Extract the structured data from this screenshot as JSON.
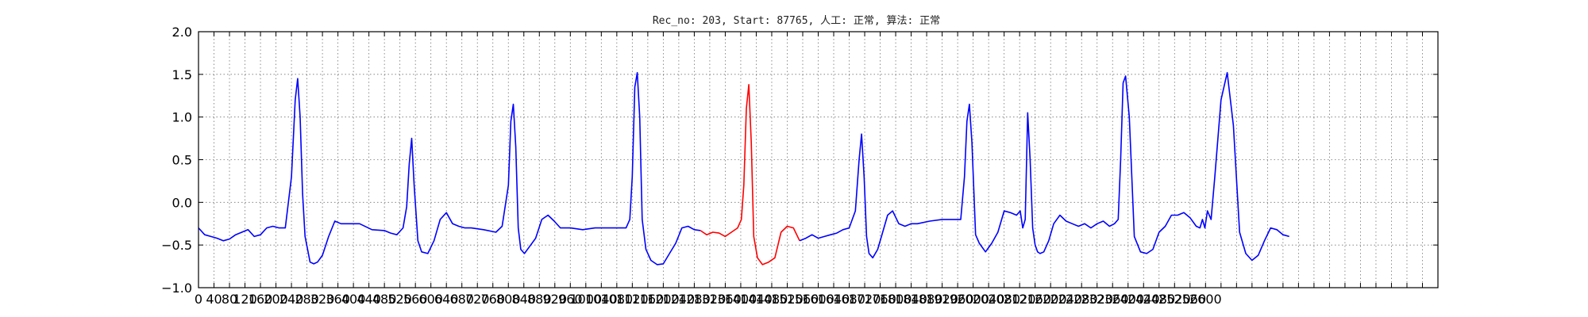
{
  "chart_data": {
    "type": "line",
    "title": "Rec_no: 203, Start: 87765, 人工: 正常, 算法: 正常",
    "xlabel": "",
    "ylabel": "",
    "xlim": [
      0,
      1.0
    ],
    "ylim": [
      -1.0,
      2.0
    ],
    "grid": true,
    "y_ticks": [
      {
        "value": -1.0,
        "label": "−1.0"
      },
      {
        "value": -0.5,
        "label": "−0.5"
      },
      {
        "value": 0.0,
        "label": "0.0"
      },
      {
        "value": 0.5,
        "label": "0.5"
      },
      {
        "value": 1.0,
        "label": "1.0"
      },
      {
        "value": 1.5,
        "label": "1.5"
      },
      {
        "value": 2.0,
        "label": "2.0"
      }
    ],
    "x_ticks": [
      {
        "value": 0.0,
        "label": "0"
      },
      {
        "value": 0.0125,
        "label": "40"
      },
      {
        "value": 0.025,
        "label": "80"
      },
      {
        "value": 0.0375,
        "label": "120"
      },
      {
        "value": 0.05,
        "label": "160"
      },
      {
        "value": 0.0625,
        "label": "200"
      },
      {
        "value": 0.075,
        "label": "240"
      },
      {
        "value": 0.0875,
        "label": "280"
      },
      {
        "value": 0.1,
        "label": "320"
      },
      {
        "value": 0.1125,
        "label": "360"
      },
      {
        "value": 0.125,
        "label": "400"
      },
      {
        "value": 0.1375,
        "label": "440"
      },
      {
        "value": 0.15,
        "label": "480"
      },
      {
        "value": 0.1625,
        "label": "520"
      },
      {
        "value": 0.175,
        "label": "560"
      },
      {
        "value": 0.1875,
        "label": "600"
      },
      {
        "value": 0.2,
        "label": "640"
      },
      {
        "value": 0.2125,
        "label": "680"
      },
      {
        "value": 0.225,
        "label": "720"
      },
      {
        "value": 0.2375,
        "label": "760"
      },
      {
        "value": 0.25,
        "label": "800"
      },
      {
        "value": 0.2625,
        "label": "840"
      },
      {
        "value": 0.275,
        "label": "880"
      },
      {
        "value": 0.2875,
        "label": "920"
      },
      {
        "value": 0.3,
        "label": "960"
      },
      {
        "value": 0.3125,
        "label": "1000"
      },
      {
        "value": 0.325,
        "label": "1040"
      },
      {
        "value": 0.3375,
        "label": "1080"
      },
      {
        "value": 0.35,
        "label": "1120"
      },
      {
        "value": 0.3625,
        "label": "1160"
      },
      {
        "value": 0.375,
        "label": "1200"
      },
      {
        "value": 0.3875,
        "label": "1240"
      },
      {
        "value": 0.4,
        "label": "1280"
      },
      {
        "value": 0.4125,
        "label": "1320"
      },
      {
        "value": 0.425,
        "label": "1360"
      },
      {
        "value": 0.4375,
        "label": "1400"
      },
      {
        "value": 0.45,
        "label": "1440"
      },
      {
        "value": 0.4625,
        "label": "1480"
      },
      {
        "value": 0.475,
        "label": "1520"
      },
      {
        "value": 0.4875,
        "label": "1560"
      },
      {
        "value": 0.5,
        "label": "1600"
      },
      {
        "value": 0.5125,
        "label": "1640"
      },
      {
        "value": 0.525,
        "label": "1680"
      },
      {
        "value": 0.5375,
        "label": "1720"
      },
      {
        "value": 0.55,
        "label": "1760"
      },
      {
        "value": 0.5625,
        "label": "1800"
      },
      {
        "value": 0.575,
        "label": "1840"
      },
      {
        "value": 0.5875,
        "label": "1880"
      },
      {
        "value": 0.6,
        "label": "1920"
      },
      {
        "value": 0.6125,
        "label": "1960"
      },
      {
        "value": 0.625,
        "label": "2000"
      },
      {
        "value": 0.6375,
        "label": "2040"
      },
      {
        "value": 0.65,
        "label": "2080"
      },
      {
        "value": 0.6625,
        "label": "2120"
      },
      {
        "value": 0.675,
        "label": "2160"
      },
      {
        "value": 0.6875,
        "label": "2200"
      },
      {
        "value": 0.7,
        "label": "2240"
      },
      {
        "value": 0.7125,
        "label": "2280"
      },
      {
        "value": 0.725,
        "label": "2320"
      },
      {
        "value": 0.7375,
        "label": "2360"
      },
      {
        "value": 0.75,
        "label": "2400"
      },
      {
        "value": 0.7625,
        "label": "2440"
      },
      {
        "value": 0.775,
        "label": "2480"
      },
      {
        "value": 0.7875,
        "label": "2520"
      },
      {
        "value": 0.8,
        "label": "2560"
      },
      {
        "value": 0.8125,
        "label": "2600"
      },
      {
        "value": 0.825,
        "label": ""
      },
      {
        "value": 0.8375,
        "label": ""
      },
      {
        "value": 0.85,
        "label": ""
      },
      {
        "value": 0.8625,
        "label": ""
      },
      {
        "value": 0.875,
        "label": ""
      },
      {
        "value": 0.8875,
        "label": ""
      },
      {
        "value": 0.9,
        "label": ""
      },
      {
        "value": 0.9125,
        "label": ""
      },
      {
        "value": 0.925,
        "label": ""
      },
      {
        "value": 0.9375,
        "label": ""
      },
      {
        "value": 0.95,
        "label": ""
      },
      {
        "value": 0.9625,
        "label": ""
      },
      {
        "value": 0.975,
        "label": ""
      },
      {
        "value": 0.9875,
        "label": ""
      },
      {
        "value": 1.0,
        "label": ""
      }
    ],
    "series": [
      {
        "color": "#0000ff",
        "x": [
          0.0,
          0.005,
          0.01,
          0.015,
          0.02,
          0.025,
          0.03,
          0.035,
          0.04,
          0.045,
          0.05,
          0.055,
          0.06,
          0.065,
          0.07,
          0.075,
          0.078,
          0.08,
          0.082,
          0.084,
          0.086,
          0.088,
          0.09,
          0.093,
          0.096,
          0.1,
          0.105,
          0.11,
          0.115,
          0.12,
          0.13,
          0.14,
          0.15,
          0.155,
          0.16,
          0.165,
          0.168,
          0.17,
          0.172,
          0.174,
          0.177,
          0.18,
          0.185,
          0.19,
          0.195,
          0.2,
          0.205,
          0.21,
          0.215,
          0.22,
          0.23,
          0.24,
          0.245,
          0.25,
          0.252,
          0.254,
          0.256,
          0.258,
          0.26,
          0.263,
          0.267,
          0.272,
          0.277,
          0.282,
          0.287,
          0.292,
          0.3,
          0.31,
          0.32,
          0.33,
          0.34,
          0.345,
          0.348,
          0.35,
          0.352,
          0.354,
          0.356,
          0.358,
          0.361,
          0.365,
          0.37,
          0.375,
          0.38,
          0.385,
          0.39,
          0.395,
          0.4,
          0.405
        ],
        "y": [
          -0.3,
          -0.38,
          -0.4,
          -0.42,
          -0.45,
          -0.43,
          -0.38,
          -0.35,
          -0.32,
          -0.4,
          -0.38,
          -0.3,
          -0.28,
          -0.3,
          -0.3,
          0.3,
          1.2,
          1.45,
          1.0,
          0.1,
          -0.4,
          -0.55,
          -0.7,
          -0.72,
          -0.7,
          -0.62,
          -0.4,
          -0.22,
          -0.25,
          -0.25,
          -0.25,
          -0.32,
          -0.33,
          -0.36,
          -0.38,
          -0.3,
          -0.05,
          0.45,
          0.75,
          0.2,
          -0.45,
          -0.58,
          -0.6,
          -0.45,
          -0.2,
          -0.12,
          -0.25,
          -0.28,
          -0.3,
          -0.3,
          -0.32,
          -0.35,
          -0.28,
          0.2,
          0.95,
          1.15,
          0.65,
          -0.3,
          -0.55,
          -0.6,
          -0.52,
          -0.42,
          -0.2,
          -0.15,
          -0.22,
          -0.3,
          -0.3,
          -0.32,
          -0.3,
          -0.3,
          -0.3,
          -0.3,
          -0.2,
          0.3,
          1.35,
          1.52,
          1.0,
          -0.2,
          -0.55,
          -0.68,
          -0.73,
          -0.72,
          -0.6,
          -0.48,
          -0.3,
          -0.28,
          -0.32,
          -0.33
        ]
      },
      {
        "color": "#ff0000",
        "x": [
          0.405,
          0.41,
          0.415,
          0.42,
          0.425,
          0.43,
          0.435,
          0.438,
          0.44,
          0.442,
          0.444,
          0.446,
          0.448,
          0.451,
          0.455,
          0.46,
          0.465,
          0.47,
          0.475,
          0.48,
          0.485
        ],
        "y": [
          -0.33,
          -0.38,
          -0.35,
          -0.36,
          -0.4,
          -0.35,
          -0.3,
          -0.2,
          0.2,
          1.1,
          1.38,
          0.7,
          -0.4,
          -0.65,
          -0.73,
          -0.7,
          -0.65,
          -0.35,
          -0.28,
          -0.3,
          -0.45
        ]
      },
      {
        "color": "#0000ff",
        "x": [
          0.485,
          0.49,
          0.495,
          0.5,
          0.505,
          0.51,
          0.515,
          0.52,
          0.525,
          0.53,
          0.533,
          0.535,
          0.537,
          0.539,
          0.541,
          0.544,
          0.548,
          0.552,
          0.556,
          0.56,
          0.565,
          0.57,
          0.575,
          0.58,
          0.59,
          0.6,
          0.61,
          0.615,
          0.618,
          0.62,
          0.622,
          0.624,
          0.627,
          0.63,
          0.635,
          0.64,
          0.645,
          0.65,
          0.655,
          0.66,
          0.663,
          0.665,
          0.667,
          0.668,
          0.669,
          0.671,
          0.673,
          0.675,
          0.677,
          0.679,
          0.682,
          0.686,
          0.69,
          0.695,
          0.7,
          0.705,
          0.71,
          0.715,
          0.72,
          0.725,
          0.73,
          0.735,
          0.739,
          0.742,
          0.744,
          0.746,
          0.748,
          0.751,
          0.755,
          0.76,
          0.765,
          0.77,
          0.775,
          0.78,
          0.785,
          0.79,
          0.795,
          0.8,
          0.805,
          0.808,
          0.81,
          0.812,
          0.814,
          0.817,
          0.82,
          0.825,
          0.83,
          0.835,
          0.84,
          0.845,
          0.85,
          0.855,
          0.86,
          0.865,
          0.87,
          0.875,
          0.88
        ],
        "y": [
          -0.45,
          -0.42,
          -0.38,
          -0.42,
          -0.4,
          -0.38,
          -0.36,
          -0.32,
          -0.3,
          -0.1,
          0.5,
          0.8,
          0.3,
          -0.4,
          -0.6,
          -0.65,
          -0.55,
          -0.35,
          -0.15,
          -0.1,
          -0.25,
          -0.28,
          -0.25,
          -0.25,
          -0.22,
          -0.2,
          -0.2,
          -0.2,
          0.3,
          0.95,
          1.15,
          0.7,
          -0.38,
          -0.48,
          -0.58,
          -0.48,
          -0.35,
          -0.1,
          -0.12,
          -0.15,
          -0.1,
          -0.3,
          -0.2,
          0.4,
          1.05,
          0.5,
          -0.3,
          -0.5,
          -0.58,
          -0.6,
          -0.58,
          -0.45,
          -0.25,
          -0.15,
          -0.22,
          -0.25,
          -0.28,
          -0.25,
          -0.3,
          -0.25,
          -0.22,
          -0.28,
          -0.25,
          -0.2,
          0.5,
          1.4,
          1.48,
          1.0,
          -0.4,
          -0.58,
          -0.6,
          -0.55,
          -0.35,
          -0.28,
          -0.15,
          -0.15,
          -0.12,
          -0.18,
          -0.28,
          -0.3,
          -0.2,
          -0.3,
          -0.1,
          -0.2,
          0.3,
          1.2,
          1.52,
          0.9,
          -0.35,
          -0.6,
          -0.68,
          -0.62,
          -0.45,
          -0.3,
          -0.32,
          -0.38,
          -0.4
        ],
        "hidden": false
      }
    ]
  }
}
